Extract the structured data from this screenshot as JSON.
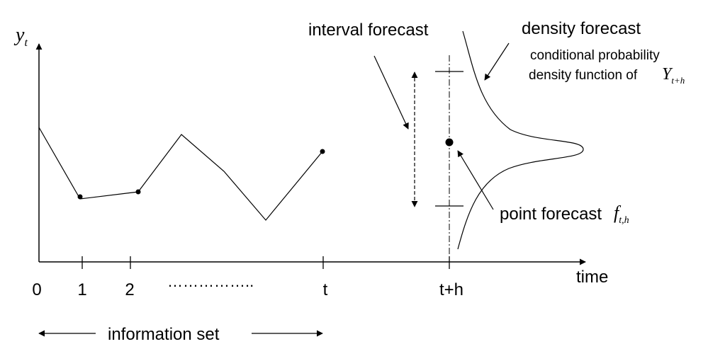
{
  "diagram": {
    "y_axis_label": {
      "base": "y",
      "sub": "t"
    },
    "x_axis_label": "time",
    "ticks": [
      "0",
      "1",
      "2",
      "t",
      "t+h"
    ],
    "ellipsis": "……………..",
    "information_set_label": "information set",
    "interval_forecast_label": "interval forecast",
    "density_forecast_label": "density forecast",
    "density_desc_line1": "conditional  probability",
    "density_desc_line2": "density function of",
    "density_var": {
      "base": "Y",
      "sub": "t+h"
    },
    "point_forecast_label": "point forecast",
    "point_forecast_var": {
      "base": "f",
      "sub": "t,h"
    },
    "colors": {
      "ink": "#000000",
      "background": "#ffffff"
    }
  }
}
